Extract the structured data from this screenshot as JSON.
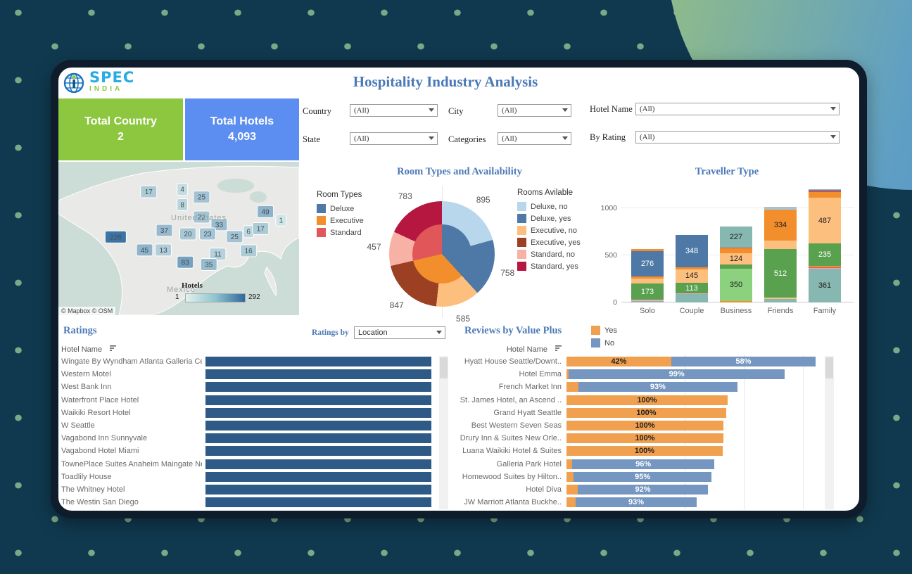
{
  "page": {
    "title": "Hospitality Industry Analysis"
  },
  "logo": {
    "spec": "SPEC",
    "india": "INDIA"
  },
  "kpis": [
    {
      "label": "Total Country",
      "value": "2"
    },
    {
      "label": "Total Hotels",
      "value": "4,093"
    }
  ],
  "filters": [
    {
      "label": "Country",
      "value": "(All)"
    },
    {
      "label": "State",
      "value": "(All)"
    },
    {
      "label": "City",
      "value": "(All)"
    },
    {
      "label": "Categories",
      "value": "(All)"
    },
    {
      "label": "Hotel Name",
      "value": "(All)"
    },
    {
      "label": "By Rating",
      "value": "(All)"
    }
  ],
  "sections": {
    "room_types": {
      "title": "Room Types and Availability",
      "legend_types_title": "Room Types",
      "legend_avail_title": "Rooms Avilable"
    },
    "traveller": {
      "title": "Traveller Type"
    },
    "ratings": {
      "title": "Ratings",
      "by_label": "Ratings by",
      "by_value": "Location",
      "col_header": "Hotel Name"
    },
    "reviews": {
      "title": "Reviews by Value Plus",
      "col_header": "Hotel Name",
      "legend_yes": "Yes",
      "legend_no": "No"
    }
  },
  "colors": {
    "accent_blue": "#4b79b7",
    "kpi_green": "#8dc63f",
    "kpi_blue": "#5c8df0",
    "ratings_bar": "#2e5a87",
    "reviews_yes": "#f0a04e",
    "reviews_no": "#7496c0"
  },
  "chart_data": [
    {
      "id": "hotels-map",
      "type": "heatmap",
      "legend_title": "Hotels",
      "legend_min": "1",
      "legend_max": "292",
      "country_label": "United States",
      "mexico_label": "Mexico",
      "attribution": "© Mapbox © OSM",
      "points": [
        {
          "value": 17,
          "x": 37.5,
          "y": 19.5
        },
        {
          "value": 4,
          "x": 51.5,
          "y": 18
        },
        {
          "value": 25,
          "x": 59.5,
          "y": 23
        },
        {
          "value": 8,
          "x": 51.5,
          "y": 28
        },
        {
          "value": 22,
          "x": 59.5,
          "y": 36
        },
        {
          "value": 33,
          "x": 66.8,
          "y": 41
        },
        {
          "value": 49,
          "x": 86,
          "y": 32.5
        },
        {
          "value": 1,
          "x": 92.5,
          "y": 38
        },
        {
          "value": 226,
          "x": 23.8,
          "y": 49
        },
        {
          "value": 37,
          "x": 44,
          "y": 44.7
        },
        {
          "value": 20,
          "x": 53.8,
          "y": 47
        },
        {
          "value": 23,
          "x": 62,
          "y": 47
        },
        {
          "value": 25,
          "x": 73.2,
          "y": 48.8
        },
        {
          "value": 6,
          "x": 79,
          "y": 45.5
        },
        {
          "value": 17,
          "x": 84,
          "y": 43.6
        },
        {
          "value": 45,
          "x": 35.8,
          "y": 57.5
        },
        {
          "value": 13,
          "x": 43.6,
          "y": 57.5
        },
        {
          "value": 83,
          "x": 52.7,
          "y": 65.5
        },
        {
          "value": 11,
          "x": 66.2,
          "y": 60.2
        },
        {
          "value": 35,
          "x": 62.5,
          "y": 67
        },
        {
          "value": 16,
          "x": 79,
          "y": 58
        }
      ]
    },
    {
      "id": "room-types-donut",
      "type": "pie",
      "title": "Room Types and Availability",
      "types": [
        {
          "name": "Deluxe",
          "value": 1653,
          "color": "#4e79a7"
        },
        {
          "name": "Executive",
          "value": 1432,
          "color": "#f28e2b"
        },
        {
          "name": "Standard",
          "value": 1240,
          "color": "#e15759"
        }
      ],
      "avail": [
        {
          "name": "Deluxe, no",
          "value": 895,
          "color": "#b9d7ec"
        },
        {
          "name": "Deluxe, yes",
          "value": 758,
          "color": "#4e79a7"
        },
        {
          "name": "Executive, no",
          "value": 585,
          "color": "#fdbf7e"
        },
        {
          "name": "Executive, yes",
          "value": 847,
          "color": "#9c4023"
        },
        {
          "name": "Standard, no",
          "value": 457,
          "color": "#f8b1a5"
        },
        {
          "name": "Standard, yes",
          "value": 783,
          "color": "#b51740"
        }
      ]
    },
    {
      "id": "traveller-type",
      "type": "bar",
      "title": "Traveller Type",
      "categories": [
        "Solo",
        "Couple",
        "Business",
        "Friends",
        "Family"
      ],
      "ylim": [
        0,
        1250
      ],
      "yticks": [
        0,
        500,
        1000
      ],
      "palette": {
        "blue": "#4e79a7",
        "teal": "#86b7b0",
        "green": "#59a14f",
        "lgreen": "#8cd17d",
        "lorange": "#fdbf7e",
        "orange": "#f28e2b",
        "pink": "#fa9fb8",
        "red": "#d9565b",
        "lblue": "#a8cce2"
      },
      "stacks": [
        [
          {
            "c": "teal",
            "v": 18
          },
          {
            "c": "pink",
            "v": 10
          },
          {
            "c": "green",
            "v": 173,
            "L": 1,
            "t": "#fff"
          },
          {
            "c": "lorange",
            "v": 50
          },
          {
            "c": "orange",
            "v": 22
          },
          {
            "c": "blue",
            "v": 276,
            "L": 1,
            "t": "#fff"
          },
          {
            "c": "orange",
            "v": 18
          }
        ],
        [
          {
            "c": "teal",
            "v": 90
          },
          {
            "c": "pink",
            "v": 6
          },
          {
            "c": "green",
            "v": 113,
            "L": 1,
            "t": "#fff"
          },
          {
            "c": "lorange",
            "v": 145,
            "L": 1,
            "t": "#222"
          },
          {
            "c": "orange",
            "v": 16
          },
          {
            "c": "blue",
            "v": 348,
            "L": 1,
            "t": "#fff"
          }
        ],
        [
          {
            "c": "orange",
            "v": 12
          },
          {
            "c": "lgreen",
            "v": 350,
            "L": 1,
            "t": "#222"
          },
          {
            "c": "green",
            "v": 40
          },
          {
            "c": "lorange",
            "v": 124,
            "L": 1,
            "t": "#222"
          },
          {
            "c": "orange",
            "v": 50
          },
          {
            "c": "red",
            "v": 6
          },
          {
            "c": "teal",
            "v": 227,
            "L": 1,
            "t": "#222"
          }
        ],
        [
          {
            "c": "teal",
            "v": 40
          },
          {
            "c": "lorange",
            "v": 12
          },
          {
            "c": "green",
            "v": 512,
            "L": 1,
            "t": "#fff"
          },
          {
            "c": "lorange",
            "v": 90
          },
          {
            "c": "orange",
            "v": 334,
            "L": 1,
            "t": "#222"
          },
          {
            "c": "lblue",
            "v": 14
          },
          {
            "c": "blue",
            "v": 8
          }
        ],
        [
          {
            "c": "teal",
            "v": 361,
            "L": 1,
            "t": "#222"
          },
          {
            "c": "pink",
            "v": 8
          },
          {
            "c": "red",
            "v": 8
          },
          {
            "c": "orange",
            "v": 12
          },
          {
            "c": "green",
            "v": 235,
            "L": 1,
            "t": "#fff"
          },
          {
            "c": "lorange",
            "v": 487,
            "L": 1,
            "t": "#222"
          },
          {
            "c": "orange",
            "v": 60
          },
          {
            "c": "blue",
            "v": 12
          },
          {
            "c": "red",
            "v": 10
          },
          {
            "c": "teal",
            "v": 6
          }
        ]
      ]
    },
    {
      "id": "ratings-list",
      "type": "bar",
      "title": "Ratings",
      "rows": [
        "Wingate By Wyndham Atlanta Galleria Cen..",
        "Western Motel",
        "West Bank Inn",
        "Waterfront Place Hotel",
        "Waikiki Resort Hotel",
        "W Seattle",
        "Vagabond Inn Sunnyvale",
        "Vagabond Hotel Miami",
        "TownePlace Suites Anaheim Maingate Ne..",
        "Toadlily House",
        "The Whitney Hotel",
        "The Westin San Diego"
      ]
    },
    {
      "id": "reviews-by-value-plus",
      "type": "bar",
      "title": "Reviews by Value Plus",
      "rows": [
        {
          "name": "Hyatt House Seattle/Downt..",
          "yes": 42,
          "no": 58,
          "rel": 1.0,
          "yes_label": "42%",
          "no_label": "58%"
        },
        {
          "name": "Hotel Emma",
          "yes": 1,
          "no": 99,
          "rel": 0.876,
          "yes_label": "",
          "no_label": "99%"
        },
        {
          "name": "French Market Inn",
          "yes": 7,
          "no": 93,
          "rel": 0.686,
          "yes_label": "",
          "no_label": "93%"
        },
        {
          "name": "St. James Hotel, an Ascend ..",
          "yes": 100,
          "no": 0,
          "rel": 0.647,
          "yes_label": "100%",
          "no_label": ""
        },
        {
          "name": "Grand Hyatt Seattle",
          "yes": 100,
          "no": 0,
          "rel": 0.641,
          "yes_label": "100%",
          "no_label": ""
        },
        {
          "name": "Best Western Seven Seas",
          "yes": 100,
          "no": 0,
          "rel": 0.63,
          "yes_label": "100%",
          "no_label": ""
        },
        {
          "name": "Drury Inn & Suites New Orle..",
          "yes": 100,
          "no": 0,
          "rel": 0.63,
          "yes_label": "100%",
          "no_label": ""
        },
        {
          "name": "Luana Waikiki Hotel & Suites",
          "yes": 100,
          "no": 0,
          "rel": 0.627,
          "yes_label": "100%",
          "no_label": ""
        },
        {
          "name": "Galleria Park Hotel",
          "yes": 4,
          "no": 96,
          "rel": 0.593,
          "yes_label": "",
          "no_label": "96%"
        },
        {
          "name": "Homewood Suites by Hilton..",
          "yes": 5,
          "no": 95,
          "rel": 0.582,
          "yes_label": "",
          "no_label": "95%"
        },
        {
          "name": "Hotel Diva",
          "yes": 8,
          "no": 92,
          "rel": 0.568,
          "yes_label": "",
          "no_label": "92%"
        },
        {
          "name": "JW Marriott Atlanta Buckhe..",
          "yes": 7,
          "no": 93,
          "rel": 0.523,
          "yes_label": "",
          "no_label": "93%"
        }
      ]
    }
  ]
}
